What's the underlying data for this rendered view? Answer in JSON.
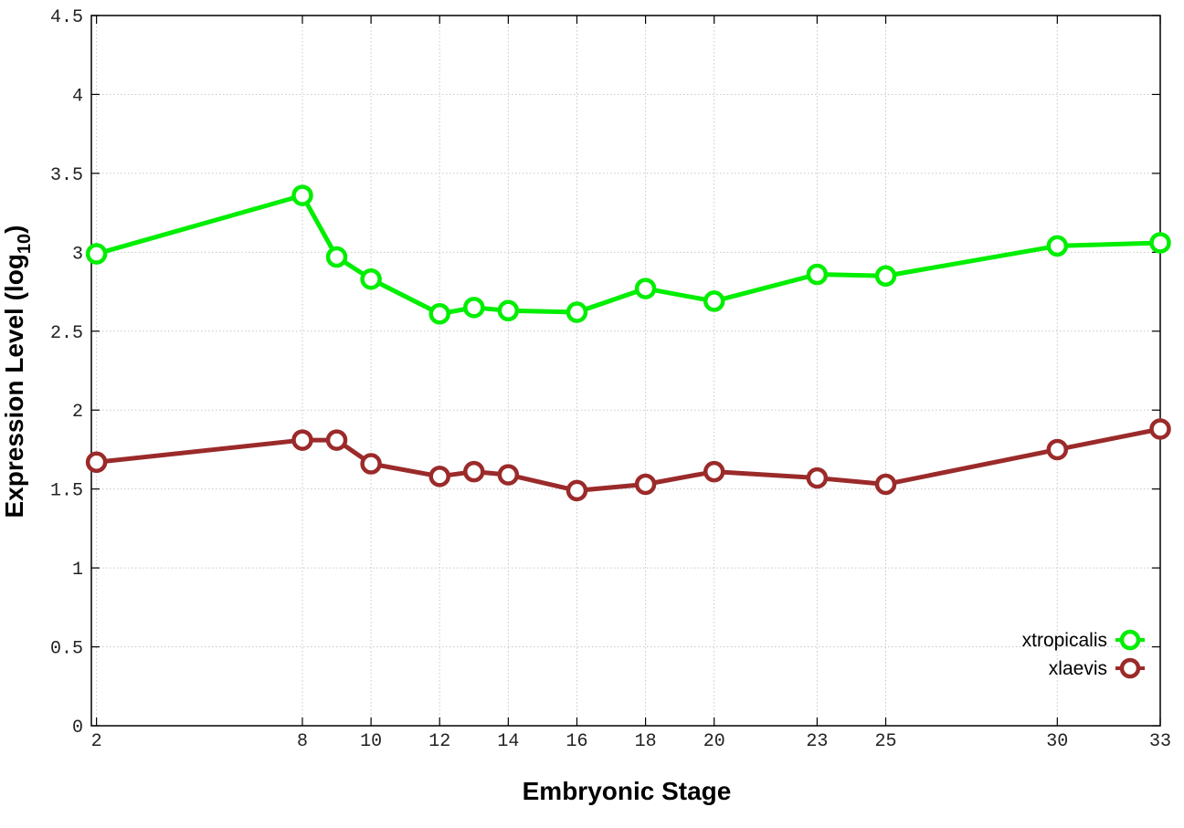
{
  "chart_data": {
    "type": "line",
    "title": "",
    "xlabel": "Embryonic Stage",
    "ylabel_main": "Expression Level (log",
    "ylabel_sub": "10",
    "ylabel_close": ")",
    "xlim": [
      1.85,
      33
    ],
    "ylim": [
      0,
      4.5
    ],
    "x": [
      2,
      8,
      9,
      10,
      12,
      13,
      14,
      16,
      18,
      20,
      23,
      25,
      30,
      33
    ],
    "xtick_labels": [
      "2",
      "8",
      "10",
      "12",
      "14",
      "16",
      "18",
      "20",
      "23",
      "25",
      "30",
      "33"
    ],
    "xtick_values": [
      2,
      8,
      10,
      12,
      14,
      16,
      18,
      20,
      23,
      25,
      30,
      33
    ],
    "ytick_labels": [
      "0",
      "0.5",
      "1",
      "1.5",
      "2",
      "2.5",
      "3",
      "3.5",
      "4",
      "4.5"
    ],
    "ytick_values": [
      0,
      0.5,
      1,
      1.5,
      2,
      2.5,
      3,
      3.5,
      4,
      4.5
    ],
    "grid": true,
    "legend_position": "bottom-right",
    "series": [
      {
        "name": "xtropicalis",
        "color": "#00ee00",
        "values": [
          2.99,
          3.36,
          2.97,
          2.83,
          2.61,
          2.65,
          2.63,
          2.62,
          2.77,
          2.69,
          2.86,
          2.85,
          3.04,
          3.06
        ]
      },
      {
        "name": "xlaevis",
        "color": "#9b2a2a",
        "values": [
          1.67,
          1.81,
          1.81,
          1.66,
          1.58,
          1.61,
          1.59,
          1.49,
          1.53,
          1.61,
          1.57,
          1.53,
          1.75,
          1.88
        ]
      }
    ]
  }
}
